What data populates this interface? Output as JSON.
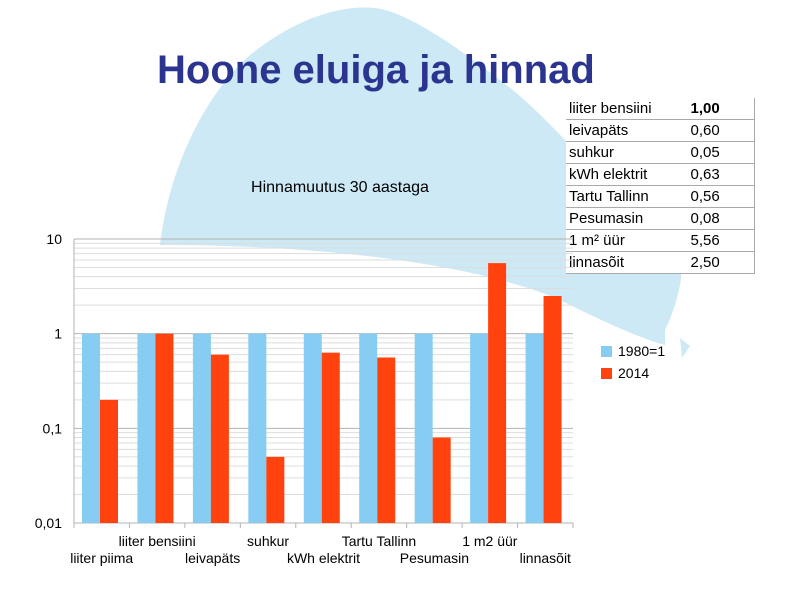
{
  "slide": {
    "title": "Hoone eluiga ja hinnad",
    "background_color": "#cde9f6"
  },
  "price_table": [
    {
      "item": "liiter bensiini",
      "value": "1,00"
    },
    {
      "item": "leivapäts",
      "value": "0,60"
    },
    {
      "item": "suhkur",
      "value": "0,05"
    },
    {
      "item": "kWh elektrit",
      "value": "0,63"
    },
    {
      "item": "Tartu Tallinn",
      "value": "0,56"
    },
    {
      "item": "Pesumasin",
      "value": "0,08"
    },
    {
      "item": "1 m² üür",
      "value": "5,56"
    },
    {
      "item": "linnasõit",
      "value": "2,50"
    }
  ],
  "chart_data": {
    "type": "bar",
    "title": "Hinnamuutus 30 aastaga",
    "yscale": "log",
    "ylim": [
      0.01,
      10
    ],
    "yticks": [
      {
        "value": 10,
        "label": "10"
      },
      {
        "value": 1,
        "label": "1"
      },
      {
        "value": 0.1,
        "label": "0,1"
      },
      {
        "value": 0.01,
        "label": "0,01"
      }
    ],
    "categories": [
      "liiter piima",
      "liiter bensiini",
      "leivapäts",
      "suhkur",
      "kWh elektrit",
      "Tartu Tallinn",
      "Pesumasin",
      "1 m2 üür",
      "linnasõit"
    ],
    "series": [
      {
        "name": "1980=1",
        "color": "#87ccf2",
        "values": [
          1,
          1,
          1,
          1,
          1,
          1,
          1,
          1,
          1
        ]
      },
      {
        "name": "2014",
        "color": "#ff420e",
        "values": [
          0.2,
          1.0,
          0.6,
          0.05,
          0.63,
          0.56,
          0.08,
          5.56,
          2.5
        ]
      }
    ],
    "legend_position": "right",
    "grid": true
  }
}
